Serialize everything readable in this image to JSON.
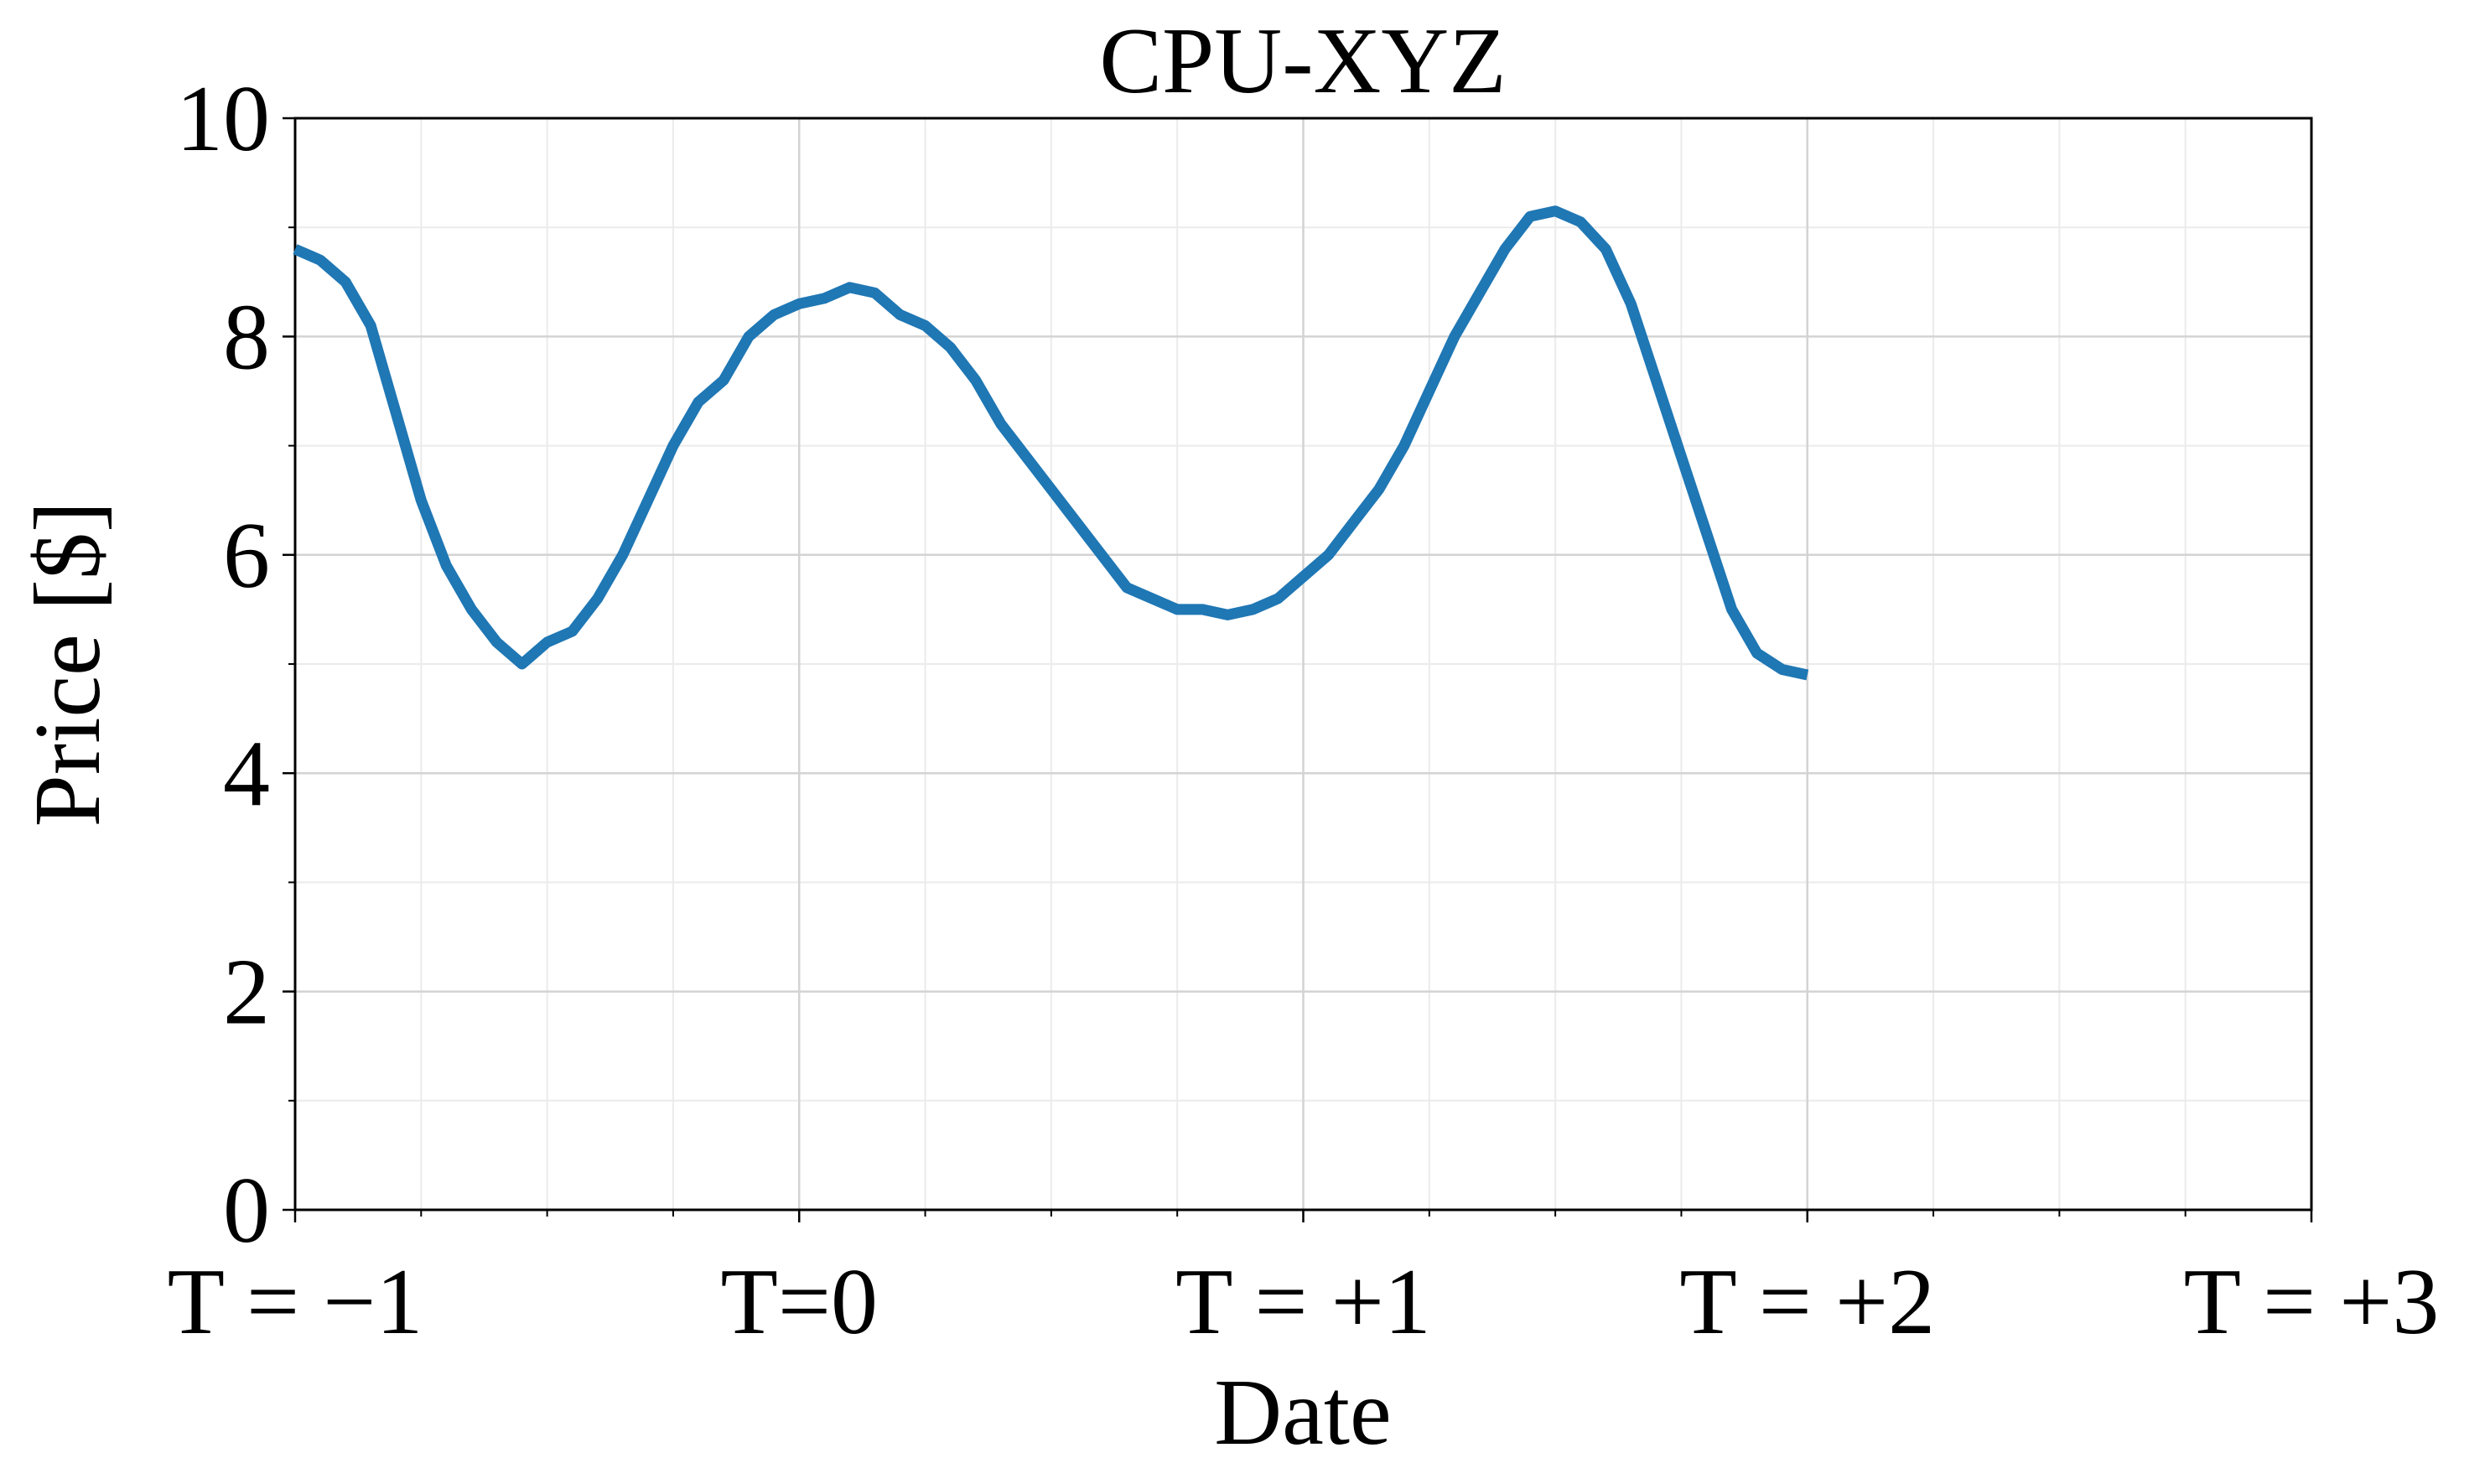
{
  "chart_data": {
    "type": "line",
    "title": "CPU-XYZ",
    "x_label": "Date",
    "y_label": "Price [$]",
    "x": [
      -1,
      -0.95,
      -0.9,
      -0.85,
      -0.8,
      -0.75,
      -0.7,
      -0.65,
      -0.6,
      -0.55,
      -0.5,
      -0.45,
      -0.4,
      -0.35,
      -0.3,
      -0.25,
      -0.2,
      -0.15,
      -0.1,
      -0.05,
      0,
      0.05,
      0.1,
      0.15,
      0.2,
      0.25,
      0.3,
      0.35,
      0.4,
      0.45,
      0.5,
      0.55,
      0.6,
      0.65,
      0.7,
      0.75,
      0.8,
      0.85,
      0.9,
      0.95,
      1,
      1.05,
      1.1,
      1.15,
      1.2,
      1.25,
      1.3,
      1.35,
      1.4,
      1.45,
      1.5,
      1.55,
      1.6,
      1.65,
      1.7,
      1.75,
      1.8,
      1.85,
      1.9,
      1.95,
      2
    ],
    "series": [
      {
        "name": "CPU-XYZ",
        "color": "#1f77b4",
        "values": [
          8.8,
          8.7,
          8.5,
          8.1,
          7.3,
          6.5,
          5.9,
          5.5,
          5.2,
          5.0,
          5.2,
          5.3,
          5.6,
          6.0,
          6.5,
          7.0,
          7.4,
          7.6,
          8.0,
          8.2,
          8.3,
          8.35,
          8.45,
          8.4,
          8.2,
          8.1,
          7.9,
          7.6,
          7.2,
          6.9,
          6.6,
          6.3,
          6.0,
          5.7,
          5.6,
          5.5,
          5.5,
          5.45,
          5.5,
          5.6,
          5.8,
          6.0,
          6.3,
          6.6,
          7.0,
          7.5,
          8.0,
          8.4,
          8.8,
          9.1,
          9.15,
          9.05,
          8.8,
          8.3,
          7.6,
          6.9,
          6.2,
          5.5,
          5.1,
          4.95,
          4.9
        ]
      }
    ],
    "xlim": [
      -1,
      3
    ],
    "ylim": [
      0,
      10
    ],
    "xticks": [
      {
        "value": -1,
        "label": "T = −1"
      },
      {
        "value": 0,
        "label": "T=0"
      },
      {
        "value": 1,
        "label": "T = +1"
      },
      {
        "value": 2,
        "label": "T = +2"
      },
      {
        "value": 3,
        "label": "T = +3"
      }
    ],
    "xminorticks": [
      -0.75,
      -0.5,
      -0.25,
      0.25,
      0.5,
      0.75,
      1.25,
      1.5,
      1.75,
      2.25,
      2.5,
      2.75
    ],
    "yticks": [
      0,
      2,
      4,
      6,
      8,
      10
    ],
    "yminorticks": [
      1,
      3,
      5,
      7,
      9
    ],
    "grid": true,
    "minor_grid": true
  }
}
